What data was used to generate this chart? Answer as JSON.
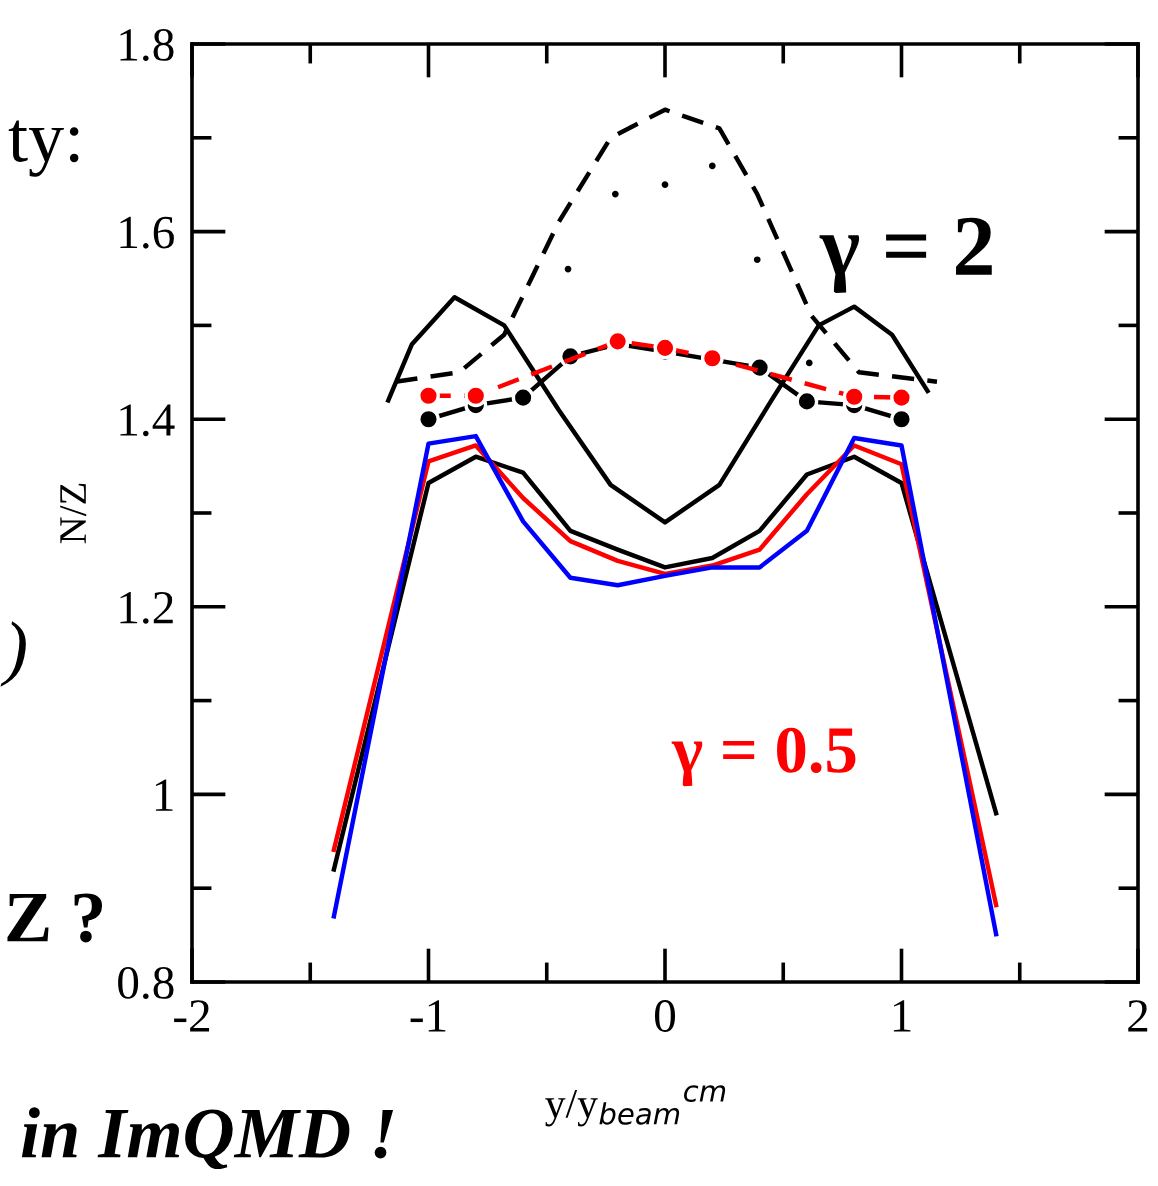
{
  "chart_data": {
    "type": "line",
    "xlabel": "y/y$_{beam}$$^{cm}$",
    "ylabel": "N/Z",
    "xlim": [
      -2,
      2
    ],
    "ylim": [
      0.8,
      1.8
    ],
    "xticks": [
      -2,
      {
        "value": -1.5,
        "label": null
      },
      -1,
      {
        "value": -0.5,
        "label": null
      },
      0,
      {
        "value": 0.5,
        "label": null
      },
      1,
      {
        "value": 1.5,
        "label": null
      },
      2
    ],
    "yticks": [
      0.8,
      {
        "value": 0.9,
        "label": null
      },
      1,
      {
        "value": 1.1,
        "label": null
      },
      1.2,
      {
        "value": 1.3,
        "label": null
      },
      1.4,
      {
        "value": 1.5,
        "label": null
      },
      1.6,
      {
        "value": 1.7,
        "label": null
      },
      1.8
    ],
    "grid": false,
    "legend": false,
    "series": [
      {
        "color": "#000000",
        "line_style": "dashed",
        "marker": "none",
        "x": [
          -1.14,
          -0.87,
          -0.68,
          -0.45,
          -0.23,
          0,
          0.23,
          0.39,
          0.62,
          0.82,
          1.15
        ],
        "values": [
          1.44,
          1.45,
          1.49,
          1.61,
          1.7,
          1.73,
          1.71,
          1.64,
          1.51,
          1.45,
          1.44
        ]
      },
      {
        "color": "#000000",
        "line_style": "solid",
        "marker": "none",
        "x": [
          -1.17,
          -1.07,
          -0.89,
          -0.68,
          -0.45,
          -0.23,
          0,
          0.23,
          0.45,
          0.65,
          0.8,
          0.96,
          1.11
        ],
        "values": [
          1.42,
          1.48,
          1.53,
          1.5,
          1.41,
          1.33,
          1.29,
          1.33,
          1.42,
          1.5,
          1.52,
          1.49,
          1.43
        ]
      },
      {
        "type": "scatter",
        "color": "#000000",
        "marker": "circle",
        "x": [
          -0.41,
          -0.21,
          0,
          0.2,
          0.39,
          0.61
        ],
        "values": [
          1.56,
          1.64,
          1.65,
          1.67,
          1.57,
          1.46
        ]
      },
      {
        "color": "#000000",
        "line_style": "solid",
        "marker": "circle",
        "x": [
          -1,
          -0.8,
          -0.6,
          -0.4,
          -0.2,
          0,
          0.4,
          0.6,
          0.8,
          1
        ],
        "values": [
          1.4,
          1.415,
          1.423,
          1.467,
          1.48,
          1.472,
          1.455,
          1.419,
          1.415,
          1.4
        ]
      },
      {
        "color": "#ff0000",
        "line_style": "dashed",
        "marker": "circle",
        "x": [
          -1,
          -0.8,
          -0.2,
          0,
          0.2,
          0.8,
          1
        ],
        "values": [
          1.425,
          1.425,
          1.483,
          1.476,
          1.465,
          1.424,
          1.423
        ]
      },
      {
        "color": "#000000",
        "line_style": "solid",
        "marker": "none",
        "x": [
          -1.4,
          -1,
          -0.8,
          -0.6,
          -0.4,
          -0.2,
          0,
          0.2,
          0.4,
          0.6,
          0.8,
          1,
          1.4
        ],
        "values": [
          0.92,
          1.332,
          1.36,
          1.343,
          1.281,
          1.261,
          1.242,
          1.252,
          1.281,
          1.341,
          1.36,
          1.332,
          0.98
        ]
      },
      {
        "color": "#ff0000",
        "line_style": "solid",
        "marker": "none",
        "x": [
          -1.4,
          -1,
          -0.8,
          -0.6,
          -0.4,
          -0.2,
          0,
          0.2,
          0.4,
          0.6,
          0.8,
          1,
          1.4
        ],
        "values": [
          0.941,
          1.355,
          1.372,
          1.316,
          1.27,
          1.249,
          1.235,
          1.244,
          1.261,
          1.32,
          1.372,
          1.352,
          0.882
        ]
      },
      {
        "color": "#0000ff",
        "line_style": "solid",
        "marker": "none",
        "x": [
          -1.4,
          -1,
          -0.8,
          -0.6,
          -0.4,
          -0.2,
          0,
          0.2,
          0.4,
          0.6,
          0.8,
          1,
          1.4
        ],
        "values": [
          0.87,
          1.374,
          1.382,
          1.291,
          1.231,
          1.223,
          1.233,
          1.242,
          1.242,
          1.281,
          1.38,
          1.372,
          0.851
        ]
      }
    ],
    "annotations": [
      "ty:",
      ")",
      "Z ?",
      "γ = 2",
      "γ = 0.5",
      "in ImQMD !"
    ]
  }
}
